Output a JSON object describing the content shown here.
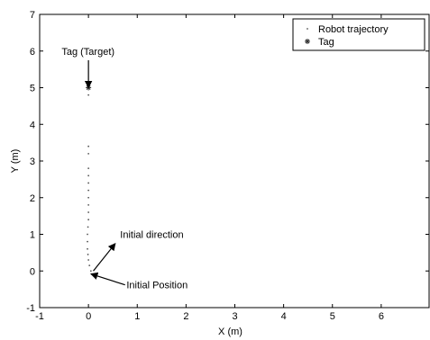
{
  "chart_data": {
    "type": "scatter",
    "title": "",
    "xlabel": "X (m)",
    "ylabel": "Y (m)",
    "xlim": [
      -1,
      7
    ],
    "ylim": [
      -1,
      7
    ],
    "xticks": [
      -1,
      0,
      1,
      2,
      3,
      4,
      5,
      6
    ],
    "yticks": [
      -1,
      0,
      1,
      2,
      3,
      4,
      5,
      6,
      7
    ],
    "grid": false,
    "legend_position": "top-right",
    "series": [
      {
        "name": "Robot trajectory",
        "marker": "dot",
        "color": "#555555",
        "x": [
          0.05,
          0.02,
          0.0,
          -0.01,
          -0.02,
          -0.02,
          -0.02,
          -0.01,
          0.0,
          0.0,
          0.0,
          0.0,
          0.0,
          0.0,
          0.0,
          0.0,
          0.0,
          0.0,
          0.0,
          0.0
        ],
        "y": [
          0.0,
          0.15,
          0.3,
          0.45,
          0.6,
          0.8,
          1.0,
          1.2,
          1.4,
          1.6,
          1.8,
          2.0,
          2.2,
          2.4,
          2.6,
          2.8,
          3.2,
          3.4,
          4.8,
          5.0
        ]
      },
      {
        "name": "Tag",
        "marker": "asterisk",
        "color": "#333333",
        "x": [
          0.0
        ],
        "y": [
          5.0
        ]
      }
    ],
    "annotations": [
      {
        "text": "Tag (Target)",
        "text_x": -0.55,
        "text_y": 6.0,
        "arrow_from": [
          0.0,
          5.75
        ],
        "arrow_to": [
          0.0,
          5.0
        ]
      },
      {
        "text": "Initial direction",
        "text_x": 0.65,
        "text_y": 1.0,
        "arrow_from": [
          0.1,
          0.0
        ],
        "arrow_to": [
          0.55,
          0.75
        ]
      },
      {
        "text": "Initial Position",
        "text_x": 0.78,
        "text_y": -0.38,
        "arrow_from": [
          0.75,
          -0.38
        ],
        "arrow_to": [
          0.05,
          -0.08
        ]
      }
    ]
  }
}
